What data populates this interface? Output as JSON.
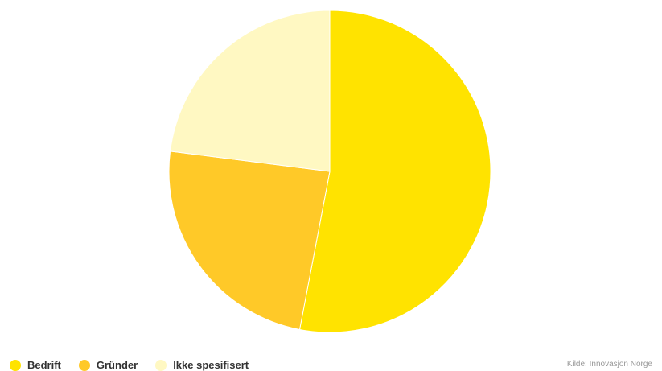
{
  "chart_data": {
    "type": "pie",
    "title": "",
    "slices": [
      {
        "label": "Bedrift",
        "value": 53,
        "color": "#ffe300"
      },
      {
        "label": "Gründer",
        "value": 24,
        "color": "#ffc928"
      },
      {
        "label": "Ikke spesifisert",
        "value": 23,
        "color": "#fff8c2"
      }
    ],
    "start_angle_deg": 0,
    "direction": "clockwise",
    "slice_border_color": "#ffffff",
    "legend_position": "bottom-left"
  },
  "source_text": "Kilde: Innovasjon Norge"
}
